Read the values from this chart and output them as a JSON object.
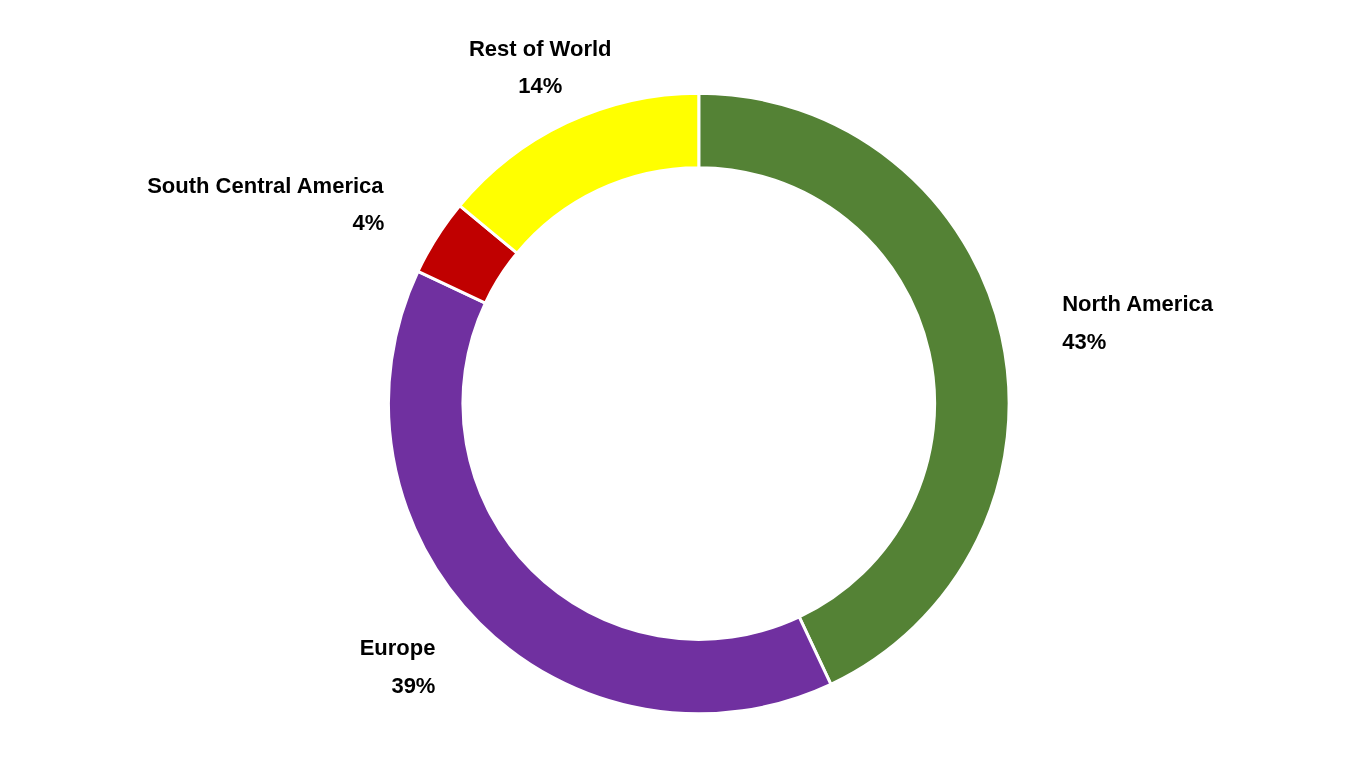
{
  "chart_data": {
    "type": "donut",
    "categories": [
      "North America",
      "Europe",
      "South Central America",
      "Rest of World"
    ],
    "values": [
      43,
      39,
      4,
      14
    ],
    "colors": [
      "#548235",
      "#7030a0",
      "#c00000",
      "#ffff00"
    ],
    "value_labels": [
      "43%",
      "39%",
      "4%",
      "14%"
    ],
    "legend": false
  }
}
